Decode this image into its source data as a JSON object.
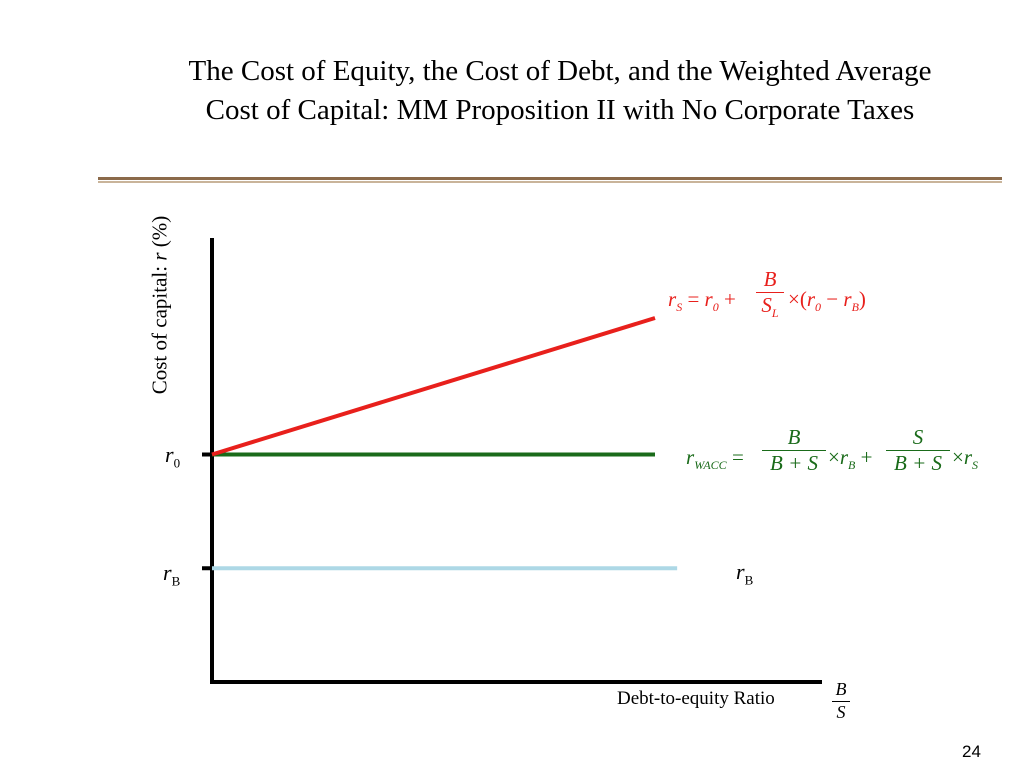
{
  "slide": {
    "title_line1": "The Cost of Equity, the Cost of Debt, and the Weighted Average",
    "title_line2": "Cost of Capital: MM Proposition II with No Corporate Taxes",
    "page_number": "24",
    "colors": {
      "rule_dark": "#8b6a4a",
      "rule_light": "#c9b49a"
    }
  },
  "chart_data": {
    "type": "line",
    "title": "The Cost of Equity, the Cost of Debt, and the Weighted Average Cost of Capital: MM Proposition II with No Corporate Taxes",
    "ylabel_prefix": "Cost of capital: ",
    "ylabel_var": "r",
    "ylabel_suffix": " (%)",
    "xlabel": "Debt-to-equity Ratio",
    "xlabel_frac": {
      "num": "B",
      "den": "S"
    },
    "y_ticks": [
      {
        "var": "r",
        "sub": "0",
        "value": 10
      },
      {
        "var": "r",
        "sub": "B",
        "value": 5
      }
    ],
    "xlim": [
      0,
      1
    ],
    "ylim": [
      0,
      20
    ],
    "grid": false,
    "legend": "none",
    "series": [
      {
        "name": "rS",
        "color": "#e8201c",
        "x": [
          0,
          1
        ],
        "y": [
          10,
          16
        ]
      },
      {
        "name": "rWACC",
        "color": "#1a6b1a",
        "x": [
          0,
          1
        ],
        "y": [
          10,
          10
        ]
      },
      {
        "name": "rB",
        "color": "#add8e6",
        "x": [
          0,
          1.05
        ],
        "y": [
          5,
          5
        ]
      }
    ],
    "annotations": {
      "rs_formula": {
        "color": "#e8201c",
        "lhs": "r",
        "lhs_sub": "S",
        "r0": "r",
        "r0_sub": "0",
        "frac_num": "B",
        "frac_den": "S",
        "frac_den_sub": "L",
        "rb": "r",
        "rb_sub": "B"
      },
      "wacc_formula": {
        "color": "#1a6b1a",
        "lhs": "r",
        "lhs_sub": "WACC",
        "frac1_num": "B",
        "frac1_den": "B + S",
        "rb": "r",
        "rb_sub": "B",
        "frac2_num": "S",
        "frac2_den": "B + S",
        "rs": "r",
        "rs_sub": "S"
      },
      "rb_label": {
        "var": "r",
        "sub": "B"
      }
    }
  }
}
